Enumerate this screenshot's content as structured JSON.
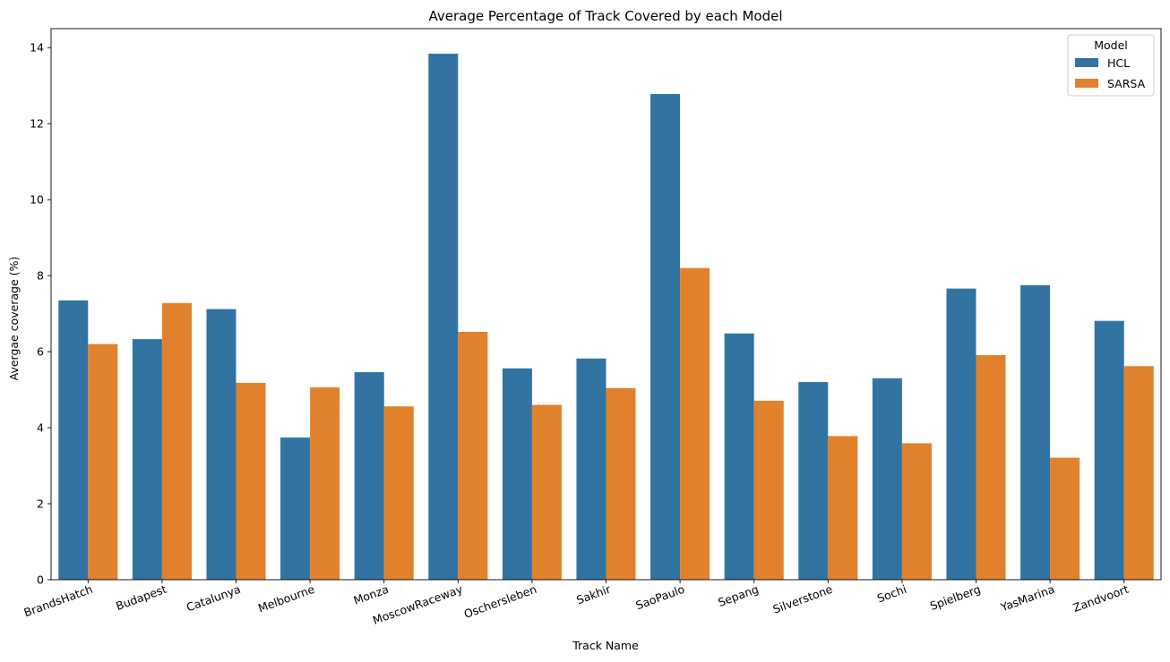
{
  "chart_data": {
    "type": "bar",
    "title": "Average Percentage of Track Covered by each Model",
    "xlabel": "Track Name",
    "ylabel": "Avergae coverage (%)",
    "ylim": [
      0,
      14.5
    ],
    "yticks": [
      0,
      2,
      4,
      6,
      8,
      10,
      12,
      14
    ],
    "grid": false,
    "legend_title": "Model",
    "legend_placement": "top-right",
    "categories": [
      "BrandsHatch",
      "Budapest",
      "Catalunya",
      "Melbourne",
      "Monza",
      "MoscowRaceway",
      "Oschersleben",
      "Sakhir",
      "SaoPaulo",
      "Sepang",
      "Silverstone",
      "Sochi",
      "Spielberg",
      "YasMarina",
      "Zandvoort"
    ],
    "series": [
      {
        "name": "HCL",
        "color": "#3274a1",
        "values": [
          7.35,
          6.33,
          7.12,
          3.74,
          5.46,
          13.84,
          5.56,
          5.82,
          12.78,
          6.48,
          5.2,
          5.3,
          7.66,
          7.75,
          6.81
        ]
      },
      {
        "name": "SARSA",
        "color": "#e1812c",
        "values": [
          6.2,
          7.28,
          5.18,
          5.06,
          4.56,
          6.52,
          4.6,
          5.04,
          8.2,
          4.71,
          3.78,
          3.59,
          5.91,
          3.21,
          5.62
        ]
      }
    ]
  }
}
